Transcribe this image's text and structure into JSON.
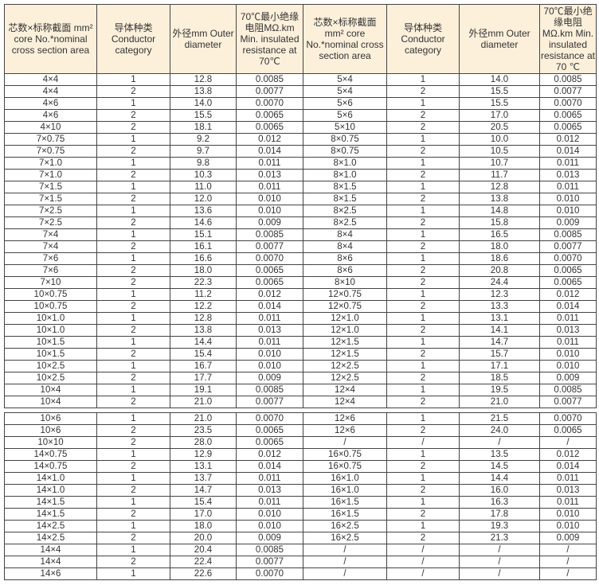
{
  "header": [
    "芯数×标称截面 mm² core No.*nominal cross section area",
    "导体种类 Conductor category",
    "外径mm Outer diameter",
    "70℃最小绝缘电阻MΩ.km Min. insulated resistance at 70℃",
    "芯数×标称截面 mm² core No.*nominal cross section area",
    "导体种类 Conductor category",
    "外径mm Outer diameter",
    "70℃最小绝缘电阻MΩ.km Min. insulated resistance at 70 ℃"
  ],
  "table1_rows": [
    [
      "4×4",
      "1",
      "12.8",
      "0.0085",
      "5×4",
      "1",
      "14.0",
      "0.0085"
    ],
    [
      "4×4",
      "2",
      "13.8",
      "0.0077",
      "5×4",
      "2",
      "15.5",
      "0.0077"
    ],
    [
      "4×6",
      "1",
      "14.0",
      "0.0070",
      "5×6",
      "1",
      "15.5",
      "0.0070"
    ],
    [
      "4×6",
      "2",
      "15.5",
      "0.0065",
      "5×6",
      "2",
      "17.0",
      "0.0065"
    ],
    [
      "4×10",
      "2",
      "18.1",
      "0.0065",
      "5×10",
      "2",
      "20.5",
      "0.0065"
    ],
    [
      "7×0.75",
      "1",
      "9.2",
      "0.012",
      "8×0.75",
      "1",
      "10.0",
      "0.012"
    ],
    [
      "7×0.75",
      "2",
      "9.7",
      "0.014",
      "8×0.75",
      "2",
      "10.5",
      "0.014"
    ],
    [
      "7×1.0",
      "1",
      "9.8",
      "0.011",
      "8×1.0",
      "1",
      "10.7",
      "0.011"
    ],
    [
      "7×1.0",
      "2",
      "10.3",
      "0.013",
      "8×1.0",
      "2",
      "11.7",
      "0.013"
    ],
    [
      "7×1.5",
      "1",
      "11.0",
      "0.011",
      "8×1.5",
      "1",
      "12.8",
      "0.011"
    ],
    [
      "7×1.5",
      "2",
      "12.0",
      "0.010",
      "8×1.5",
      "2",
      "13.8",
      "0.010"
    ],
    [
      "7×2.5",
      "1",
      "13.6",
      "0.010",
      "8×2.5",
      "1",
      "14.8",
      "0.010"
    ],
    [
      "7×2.5",
      "2",
      "14.6",
      "0.009",
      "8×2.5",
      "2",
      "15.8",
      "0.009"
    ],
    [
      "7×4",
      "1",
      "15.1",
      "0.0085",
      "8×4",
      "1",
      "16.5",
      "0.0085"
    ],
    [
      "7×4",
      "2",
      "16.1",
      "0.0077",
      "8×4",
      "2",
      "18.0",
      "0.0077"
    ],
    [
      "7×6",
      "1",
      "16.6",
      "0.0070",
      "8×6",
      "1",
      "18.6",
      "0.0070"
    ],
    [
      "7×6",
      "2",
      "18.0",
      "0.0065",
      "8×6",
      "2",
      "20.8",
      "0.0065"
    ],
    [
      "7×10",
      "2",
      "22.3",
      "0.0065",
      "8×10",
      "2",
      "24.4",
      "0.0065"
    ],
    [
      "10×0.75",
      "1",
      "11.2",
      "0.012",
      "12×0.75",
      "1",
      "12.3",
      "0.012"
    ],
    [
      "10×0.75",
      "2",
      "12.2",
      "0.014",
      "12×0.75",
      "2",
      "13.3",
      "0.014"
    ],
    [
      "10×1.0",
      "1",
      "12.8",
      "0.011",
      "12×1.0",
      "1",
      "13.1",
      "0.011"
    ],
    [
      "10×1.0",
      "2",
      "13.8",
      "0.013",
      "12×1.0",
      "2",
      "14.1",
      "0.013"
    ],
    [
      "10×1.5",
      "1",
      "14.4",
      "0.011",
      "12×1.5",
      "1",
      "14.7",
      "0.011"
    ],
    [
      "10×1.5",
      "2",
      "15.4",
      "0.010",
      "12×1.5",
      "2",
      "15.7",
      "0.010"
    ],
    [
      "10×2.5",
      "1",
      "16.7",
      "0.010",
      "12×2.5",
      "1",
      "17.1",
      "0.010"
    ],
    [
      "10×2.5",
      "2",
      "17.7",
      "0.009",
      "12×2.5",
      "2",
      "18.5",
      "0.009"
    ],
    [
      "10×4",
      "1",
      "19.1",
      "0.0085",
      "12×4",
      "1",
      "19.5",
      "0.0085"
    ],
    [
      "10×4",
      "2",
      "21.0",
      "0.0077",
      "12×4",
      "2",
      "21.0",
      "0.0077"
    ]
  ],
  "table2_rows": [
    [
      "10×6",
      "1",
      "21.0",
      "0.0070",
      "12×6",
      "1",
      "21.5",
      "0.0070"
    ],
    [
      "10×6",
      "2",
      "23.5",
      "0.0065",
      "12×6",
      "2",
      "24.0",
      "0.0065"
    ],
    [
      "10×10",
      "2",
      "28.0",
      "0.0065",
      "/",
      "/",
      "/",
      "/"
    ],
    [
      "14×0.75",
      "1",
      "12.9",
      "0.012",
      "16×0.75",
      "1",
      "13.5",
      "0.012"
    ],
    [
      "14×0.75",
      "2",
      "13.1",
      "0.014",
      "16×0.75",
      "2",
      "14.5",
      "0.014"
    ],
    [
      "14×1.0",
      "1",
      "13.7",
      "0.011",
      "16×1.0",
      "1",
      "14.4",
      "0.011"
    ],
    [
      "14×1.0",
      "2",
      "14.7",
      "0.013",
      "16×1.0",
      "2",
      "16.0",
      "0.013"
    ],
    [
      "14×1.5",
      "1",
      "15.4",
      "0.011",
      "16×1.5",
      "1",
      "16.3",
      "0.011"
    ],
    [
      "14×1.5",
      "2",
      "17.0",
      "0.010",
      "16×1.5",
      "2",
      "17.8",
      "0.010"
    ],
    [
      "14×2.5",
      "1",
      "18.0",
      "0.010",
      "16×2.5",
      "1",
      "19.3",
      "0.010"
    ],
    [
      "14×2.5",
      "2",
      "20.0",
      "0.009",
      "16×2.5",
      "2",
      "21.3",
      "0.009"
    ],
    [
      "14×4",
      "1",
      "20.4",
      "0.0085",
      "/",
      "/",
      "/",
      "/"
    ],
    [
      "14×4",
      "2",
      "22.4",
      "0.0077",
      "/",
      "/",
      "/",
      "/"
    ],
    [
      "14×6",
      "1",
      "22.6",
      "0.0070",
      "/",
      "/",
      "/",
      "/"
    ]
  ]
}
